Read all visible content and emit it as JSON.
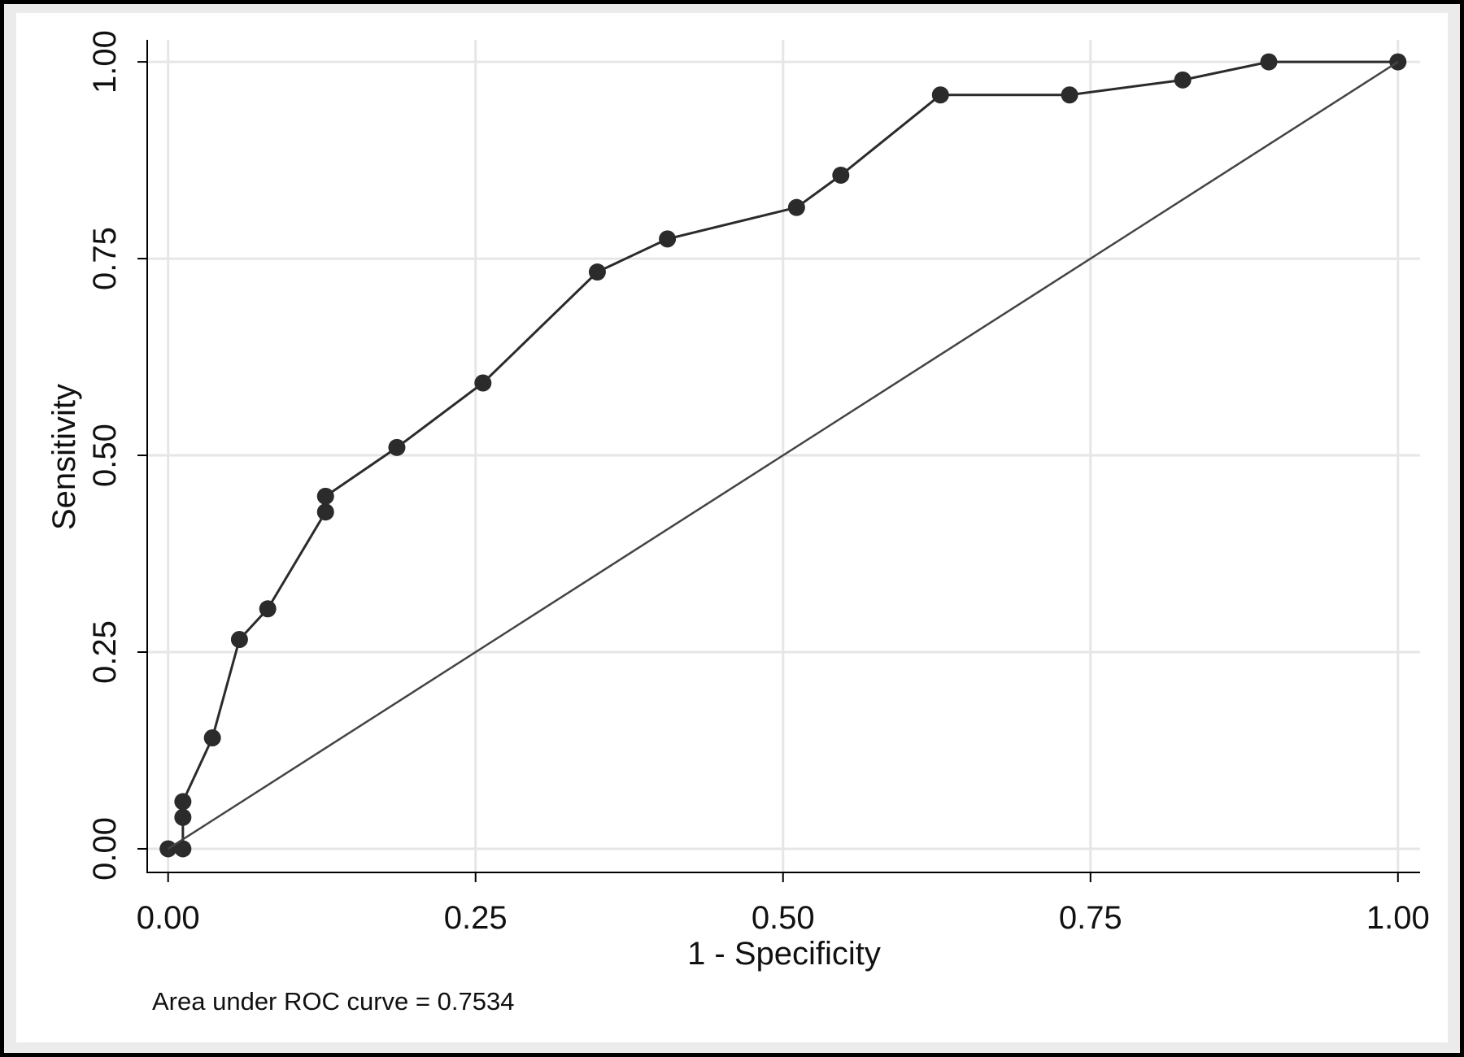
{
  "chart_data": {
    "type": "line",
    "x_label": "1 - Specificity",
    "y_label": "Sensitivity",
    "note": "Area under ROC curve = 0.7534",
    "series": [
      {
        "color": "#2b2b2b",
        "markers": true,
        "x": [
          0,
          0.012,
          0.012,
          0.012,
          0.036,
          0.058,
          0.081,
          0.128,
          0.128,
          0.186,
          0.256,
          0.349,
          0.406,
          0.511,
          0.547,
          0.628,
          0.733,
          0.825,
          0.895,
          1
        ],
        "values": [
          0,
          0,
          0.04,
          0.06,
          0.141,
          0.266,
          0.305,
          0.428,
          0.448,
          0.51,
          0.592,
          0.733,
          0.775,
          0.815,
          0.856,
          0.958,
          0.958,
          0.977,
          1,
          1
        ]
      },
      {
        "color": "#444444",
        "markers": false,
        "x": [
          0,
          1
        ],
        "values": [
          0,
          1
        ]
      }
    ],
    "xlim": [
      -0.017,
      1.018
    ],
    "ylim": [
      -0.03,
      1.028
    ],
    "xticks": [
      {
        "value": 0,
        "label": "0.00"
      },
      {
        "value": 0.25,
        "label": "0.25"
      },
      {
        "value": 0.5,
        "label": "0.50"
      },
      {
        "value": 0.75,
        "label": "0.75"
      },
      {
        "value": 1,
        "label": "1.00"
      }
    ],
    "yticks": [
      {
        "value": 0,
        "label": "0.00"
      },
      {
        "value": 0.25,
        "label": "0.25"
      },
      {
        "value": 0.5,
        "label": "0.50"
      },
      {
        "value": 0.75,
        "label": "0.75"
      },
      {
        "value": 1,
        "label": "1.00"
      }
    ],
    "grid": true
  }
}
